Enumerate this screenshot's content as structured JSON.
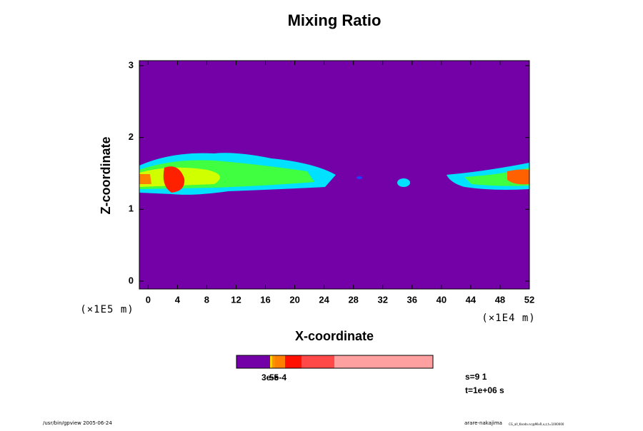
{
  "chart_data": {
    "type": "contour",
    "title": "Mixing Ratio",
    "xlabel": "X-coordinate",
    "ylabel": "Z-coordinate",
    "x_unit_label": "(×1E4 m)",
    "y_unit_label": "(×1E5 m)",
    "xlim": [
      -1.2,
      52
    ],
    "ylim": [
      -0.11,
      3.07
    ],
    "xticks": [
      0,
      4,
      8,
      12,
      16,
      20,
      24,
      28,
      32,
      36,
      40,
      44,
      48,
      52
    ],
    "yticks": [
      0,
      1,
      2,
      3
    ],
    "background_color": "#7400a8",
    "colorbar_colors": [
      "#7400a8",
      "#ffd000",
      "#ff9000",
      "#ff8000",
      "#ff1000",
      "#ff4848",
      "#ffa0a0"
    ],
    "colorbar_labels": [
      "3e-5",
      "5e-4"
    ],
    "notes": [
      "s=9 1",
      "t=1e+06 s"
    ],
    "footer_left": "/usr/bin/gpview 2005-06-24",
    "footer_right": "arare-nakajima",
    "footer_right_small": "CG_all_Ksoda.nc@MixR,x,z,t=1000000"
  }
}
